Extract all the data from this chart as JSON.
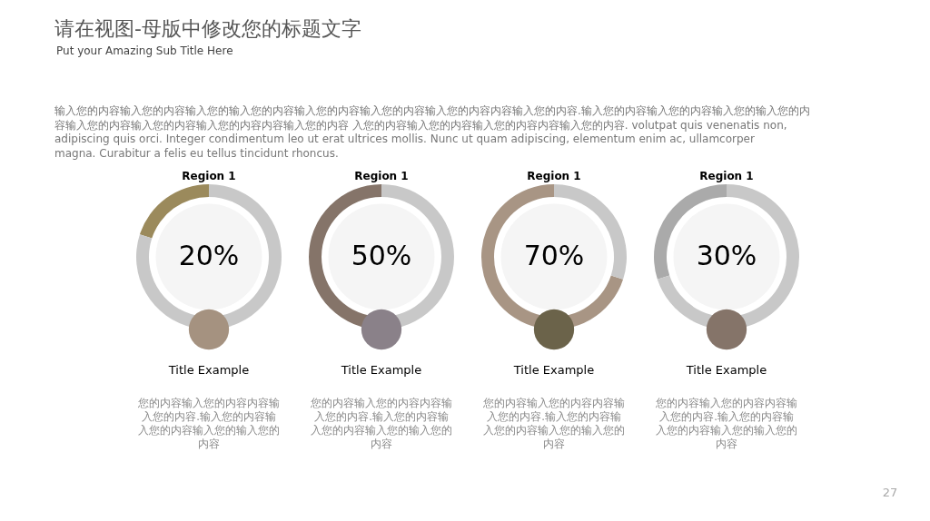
{
  "chart_data": [
    {
      "type": "other",
      "title": "请在视图-母版中修改您的标题文字",
      "subtitle": "Put your Amazing Sub Title Here",
      "annotations": [
        "输入您的内容输入您的内容输入您的输入您的内容输入您的内容输入您的内容输入您的内容内容输入您的内容.输入您的内容输入您的内容输入您的输入您的内容输入您的内容输入您的内容输入您的内容内容输入您的内容 入您的内容输入您的内容输入您的内容内容输入您的内容. volutpat quis venenatis non, adipiscing quis orci. Integer condimentum leo ut erat ultrices mollis. Nunc ut quam adipiscing, elementum enim ac, ullamcorper magna. Curabitur a felis eu tellus tincidunt rhoncus."
      ]
    },
    {
      "type": "donut",
      "title": "Region 1",
      "xlabel": "Title Example",
      "categories": [
        null,
        null
      ],
      "values": [
        20,
        80
      ],
      "colors": [
        "#9b8a5c",
        "#c8c8c8"
      ],
      "value_labels": [
        "20%",
        null
      ],
      "annotations": [
        "您的内容输入您的内容内容输入您的内容.输入您的内容输入您的内容输入您的输入您的内容"
      ]
    },
    {
      "type": "donut",
      "title": "Region 1",
      "xlabel": "Title Example",
      "categories": [
        null,
        null
      ],
      "values": [
        50,
        50
      ],
      "colors": [
        "#857469",
        "#c8c8c8"
      ],
      "value_labels": [
        "50%",
        null
      ],
      "annotations": [
        "您的内容输入您的内容内容输入您的内容.输入您的内容输入您的内容输入您的输入您的内容"
      ]
    },
    {
      "type": "donut",
      "title": "Region 1",
      "xlabel": "Title Example",
      "categories": [
        null,
        null
      ],
      "values": [
        70,
        30
      ],
      "colors": [
        "#a89584",
        "#c8c8c8"
      ],
      "value_labels": [
        "70%",
        null
      ],
      "annotations": [
        "您的内容输入您的内容内容输入您的内容.输入您的内容输入您的内容输入您的输入您的内容"
      ]
    },
    {
      "type": "donut",
      "title": "Region 1",
      "xlabel": "Title Example",
      "categories": [
        null,
        null
      ],
      "values": [
        30,
        70
      ],
      "colors": [
        "#aaaaaa",
        "#c8c8c8"
      ],
      "value_labels": [
        "30%",
        null
      ],
      "annotations": [
        "您的内容输入您的内容内容输入您的内容.输入您的内容输入您的内容输入您的输入您的内容",
        "27"
      ]
    }
  ]
}
